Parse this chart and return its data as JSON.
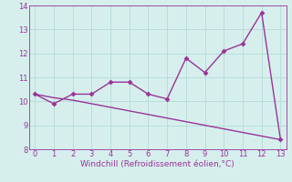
{
  "x": [
    0,
    1,
    2,
    3,
    4,
    5,
    6,
    7,
    8,
    9,
    10,
    11,
    12,
    13
  ],
  "line1_y": [
    10.3,
    9.9,
    10.3,
    10.3,
    10.8,
    10.8,
    10.3,
    10.1,
    11.8,
    11.2,
    12.1,
    12.4,
    13.7,
    8.4
  ],
  "line2_y": [
    10.3,
    10.15,
    10.05,
    9.9,
    9.75,
    9.6,
    9.45,
    9.3,
    9.15,
    9.0,
    8.85,
    8.7,
    8.55,
    8.4
  ],
  "line_color": "#993399",
  "bg_color": "#d6efed",
  "grid_color": "#b8ddd9",
  "xlabel": "Windchill (Refroidissement éolien,°C)",
  "ylim": [
    8,
    14
  ],
  "xlim": [
    -0.3,
    13.3
  ],
  "yticks": [
    8,
    9,
    10,
    11,
    12,
    13,
    14
  ],
  "xticks": [
    0,
    1,
    2,
    3,
    4,
    5,
    6,
    7,
    8,
    9,
    10,
    11,
    12,
    13
  ],
  "marker": "D",
  "markersize": 2.5,
  "linewidth": 1.0,
  "xlabel_fontsize": 6.5,
  "tick_fontsize": 6.0
}
